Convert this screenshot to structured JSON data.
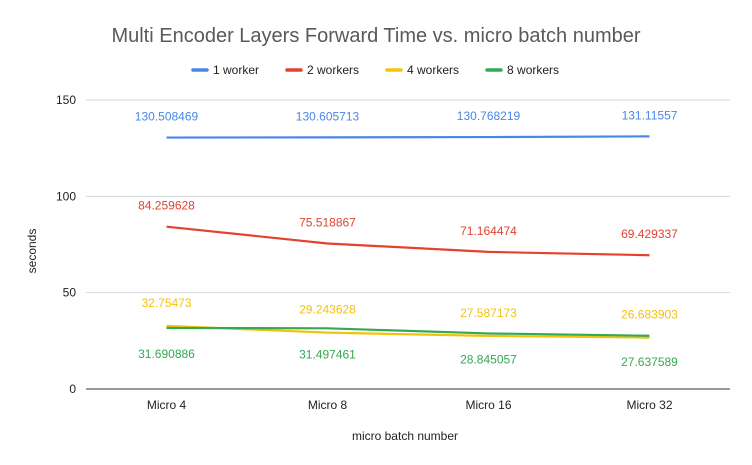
{
  "chart_data": {
    "type": "line",
    "title": "Multi Encoder Layers Forward Time vs. micro batch number",
    "xlabel": "micro batch number",
    "ylabel": "seconds",
    "categories": [
      "Micro 4",
      "Micro 8",
      "Micro 16",
      "Micro 32"
    ],
    "ylim": [
      0,
      150
    ],
    "yticks": [
      0,
      50,
      100,
      150
    ],
    "grid": true,
    "legend_position": "top",
    "series": [
      {
        "name": "1 worker",
        "color": "#4a86e8",
        "values": [
          130.508469,
          130.605713,
          130.768219,
          131.11557
        ],
        "labels": [
          "130.508469",
          "130.605713",
          "130.768219",
          "131.11557"
        ]
      },
      {
        "name": "2 workers",
        "color": "#e2432e",
        "values": [
          84.259628,
          75.518867,
          71.164474,
          69.429337
        ],
        "labels": [
          "84.259628",
          "75.518867",
          "71.164474",
          "69.429337"
        ]
      },
      {
        "name": "4 workers",
        "color": "#f4c20d",
        "values": [
          32.75473,
          29.243628,
          27.587173,
          26.683903
        ],
        "labels": [
          "32.75473",
          "29.243628",
          "27.587173",
          "26.683903"
        ]
      },
      {
        "name": "8 workers",
        "color": "#34a853",
        "values": [
          31.690886,
          31.497461,
          28.845057,
          27.637589
        ],
        "labels": [
          "31.690886",
          "31.497461",
          "28.845057",
          "27.637589"
        ]
      }
    ]
  }
}
